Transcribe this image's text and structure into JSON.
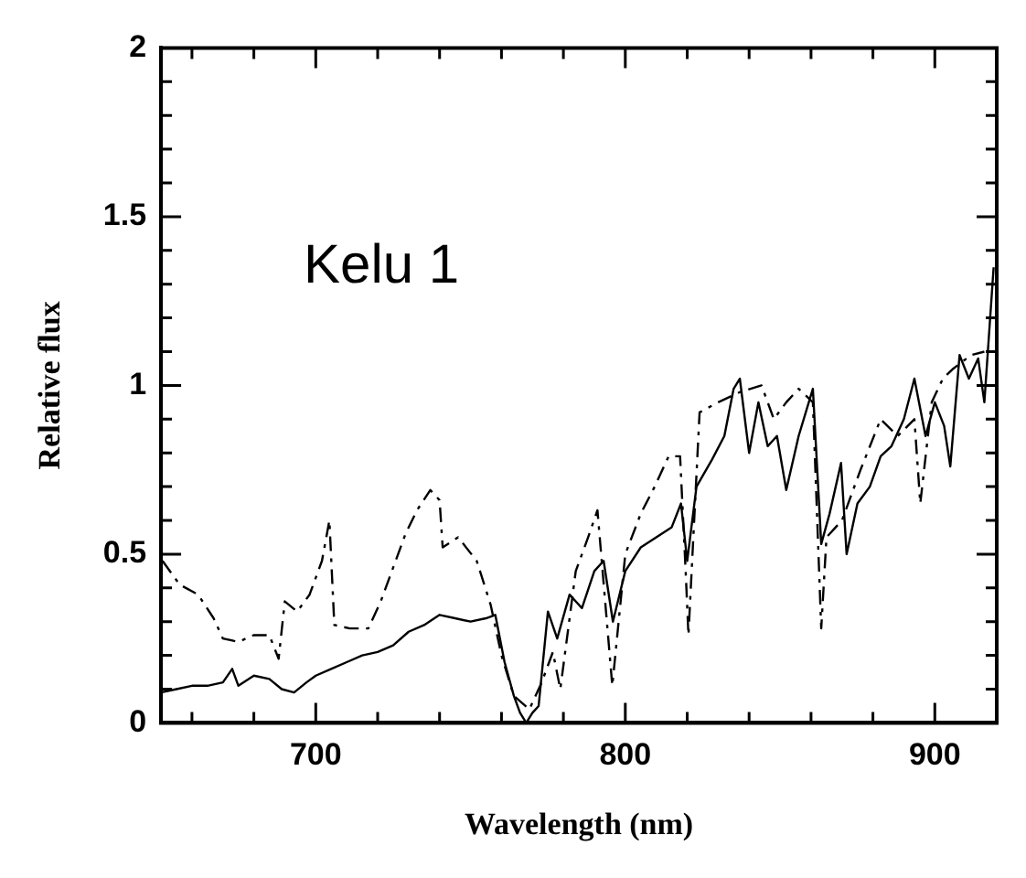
{
  "chart_data": {
    "type": "line",
    "xlabel": "Wavelength (nm)",
    "ylabel": "Relative flux",
    "annotations": [
      "Kelu 1"
    ],
    "xlim": [
      650,
      920
    ],
    "ylim": [
      0,
      2
    ],
    "xticks": [
      {
        "value": 660,
        "label": null
      },
      {
        "value": 680,
        "label": null
      },
      700,
      {
        "value": 720,
        "label": null
      },
      {
        "value": 740,
        "label": null
      },
      {
        "value": 760,
        "label": null
      },
      {
        "value": 780,
        "label": null
      },
      800,
      {
        "value": 820,
        "label": null
      },
      {
        "value": 840,
        "label": null
      },
      {
        "value": 860,
        "label": null
      },
      {
        "value": 880,
        "label": null
      },
      900,
      {
        "value": 920,
        "label": null
      }
    ],
    "yticks": [
      0,
      {
        "value": 0.1,
        "label": null
      },
      {
        "value": 0.2,
        "label": null
      },
      {
        "value": 0.3,
        "label": null
      },
      {
        "value": 0.4,
        "label": null
      },
      0.5,
      {
        "value": 0.6,
        "label": null
      },
      {
        "value": 0.7,
        "label": null
      },
      {
        "value": 0.8,
        "label": null
      },
      {
        "value": 0.9,
        "label": null
      },
      1,
      {
        "value": 1.1,
        "label": null
      },
      {
        "value": 1.2,
        "label": null
      },
      {
        "value": 1.3,
        "label": null
      },
      {
        "value": 1.4,
        "label": null
      },
      1.5,
      {
        "value": 1.6,
        "label": null
      },
      {
        "value": 1.7,
        "label": null
      },
      {
        "value": 1.8,
        "label": null
      },
      {
        "value": 1.9,
        "label": null
      },
      2
    ],
    "grid": false,
    "legend": false,
    "marker": "none",
    "series": [
      {
        "color": "#000000",
        "line_style": "solid",
        "x": [
          650,
          655,
          660,
          665,
          670,
          673,
          675,
          680,
          685,
          689,
          693,
          697,
          700,
          705,
          710,
          715,
          720,
          725,
          730,
          735,
          740,
          745,
          750,
          755,
          758,
          761,
          764,
          766,
          768,
          770,
          772,
          775,
          778,
          782,
          786,
          790,
          793,
          796,
          800,
          805,
          810,
          815,
          818,
          820,
          823,
          828,
          832,
          835,
          837,
          840,
          843,
          846,
          849,
          852,
          856,
          860.6,
          863.3,
          866,
          869.7,
          871.5,
          875,
          879,
          882.5,
          886,
          890,
          893.4,
          897,
          900,
          903,
          905,
          908,
          911,
          914,
          916,
          919
        ],
        "values": [
          0.09,
          0.1,
          0.11,
          0.11,
          0.12,
          0.16,
          0.11,
          0.14,
          0.13,
          0.1,
          0.09,
          0.12,
          0.14,
          0.16,
          0.18,
          0.2,
          0.21,
          0.23,
          0.27,
          0.29,
          0.32,
          0.31,
          0.3,
          0.31,
          0.32,
          0.18,
          0.08,
          0.03,
          0.0,
          0.03,
          0.05,
          0.33,
          0.25,
          0.38,
          0.34,
          0.45,
          0.48,
          0.3,
          0.45,
          0.52,
          0.55,
          0.58,
          0.65,
          0.48,
          0.7,
          0.78,
          0.85,
          0.99,
          1.02,
          0.8,
          0.95,
          0.82,
          0.85,
          0.69,
          0.85,
          0.99,
          0.53,
          0.62,
          0.77,
          0.5,
          0.65,
          0.7,
          0.79,
          0.82,
          0.9,
          1.02,
          0.85,
          0.95,
          0.88,
          0.76,
          1.09,
          1.02,
          1.08,
          0.95,
          1.35
        ]
      },
      {
        "color": "#000000",
        "line_style": "dashed",
        "x": [
          650.5,
          656,
          662,
          667,
          670,
          675,
          680,
          685,
          688,
          690,
          694,
          698,
          702,
          704.4,
          706,
          711,
          717,
          721,
          725.4,
          729,
          732.7,
          737,
          740,
          741,
          746,
          752,
          756.5,
          760,
          764,
          769,
          773,
          776.6,
          779,
          784,
          788,
          791,
          795.8,
          800,
          805,
          809.5,
          814,
          817.7,
          819.5,
          820.4,
          824,
          830,
          837,
          844,
          848,
          852,
          856,
          860.6,
          863.3,
          865,
          870,
          876,
          882.5,
          888,
          893.4,
          895.3,
          899,
          902.6,
          906,
          911.7,
          916
        ],
        "values": [
          0.48,
          0.41,
          0.38,
          0.31,
          0.25,
          0.24,
          0.26,
          0.26,
          0.19,
          0.36,
          0.33,
          0.38,
          0.48,
          0.6,
          0.29,
          0.28,
          0.28,
          0.36,
          0.47,
          0.56,
          0.63,
          0.69,
          0.66,
          0.52,
          0.55,
          0.48,
          0.35,
          0.2,
          0.08,
          0.04,
          0.12,
          0.21,
          0.1,
          0.45,
          0.55,
          0.63,
          0.11,
          0.5,
          0.62,
          0.7,
          0.79,
          0.79,
          0.45,
          0.26,
          0.92,
          0.95,
          0.98,
          1.0,
          0.9,
          0.95,
          0.99,
          0.95,
          0.28,
          0.55,
          0.6,
          0.75,
          0.9,
          0.85,
          0.9,
          0.65,
          0.95,
          1.02,
          1.05,
          1.09,
          1.1
        ]
      }
    ]
  }
}
